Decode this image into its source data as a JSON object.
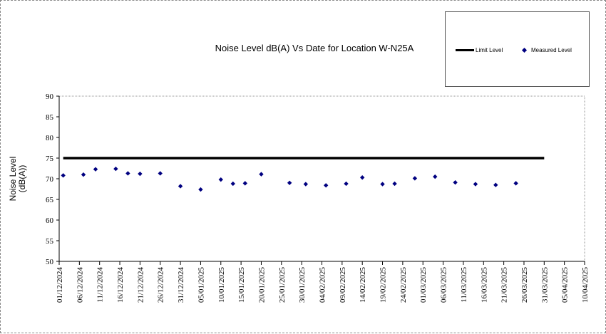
{
  "chart_data": {
    "type": "scatter",
    "title": "Noise Level dB(A) Vs Date for Location W-N25A",
    "ylabel": "Noise Level\n(dB(A))",
    "xlabel": "",
    "ylim": [
      50,
      90
    ],
    "yticks": [
      50,
      55,
      60,
      65,
      70,
      75,
      80,
      85,
      90
    ],
    "xlim": [
      "2024-12-01",
      "2025-04-10"
    ],
    "xtick_labels": [
      "01/12/2024",
      "06/12/2024",
      "11/12/2024",
      "16/12/2024",
      "21/12/2024",
      "26/12/2024",
      "31/12/2024",
      "05/01/2025",
      "10/01/2025",
      "15/01/2025",
      "20/01/2025",
      "25/01/2025",
      "30/01/2025",
      "04/02/2025",
      "09/02/2025",
      "14/02/2025",
      "19/02/2025",
      "24/02/2025",
      "01/03/2025",
      "06/03/2025",
      "11/03/2025",
      "16/03/2025",
      "21/03/2025",
      "26/03/2025",
      "31/03/2025",
      "05/04/2025",
      "10/04/2025"
    ],
    "legend_position": "top-right",
    "grid": false,
    "series": [
      {
        "name": "Limit Level",
        "kind": "line",
        "color": "#000000",
        "x": [
          "2024-12-02",
          "2025-03-31"
        ],
        "y": [
          75,
          75
        ]
      },
      {
        "name": "Measured Level",
        "kind": "scatter",
        "color": "#000080",
        "x": [
          "2024-12-02",
          "2024-12-07",
          "2024-12-10",
          "2024-12-15",
          "2024-12-18",
          "2024-12-21",
          "2024-12-26",
          "2024-12-31",
          "2025-01-05",
          "2025-01-10",
          "2025-01-13",
          "2025-01-16",
          "2025-01-20",
          "2025-01-27",
          "2025-01-31",
          "2025-02-05",
          "2025-02-10",
          "2025-02-14",
          "2025-02-19",
          "2025-02-22",
          "2025-02-27",
          "2025-03-04",
          "2025-03-09",
          "2025-03-14",
          "2025-03-19",
          "2025-03-24"
        ],
        "y": [
          70.8,
          71.0,
          72.3,
          72.4,
          71.3,
          71.2,
          71.3,
          68.2,
          67.4,
          69.8,
          68.8,
          68.9,
          71.1,
          69.0,
          68.7,
          68.4,
          68.8,
          70.3,
          68.7,
          68.8,
          70.1,
          70.5,
          69.1,
          68.7,
          68.5,
          68.9
        ]
      }
    ]
  }
}
